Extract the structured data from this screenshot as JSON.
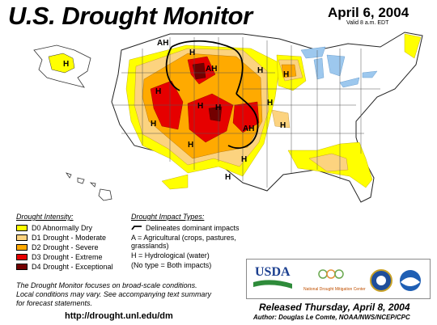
{
  "header": {
    "title": "U.S. Drought Monitor",
    "date": "April 6, 2004",
    "valid": "Valid 8 a.m. EDT"
  },
  "legend": {
    "intensity_title": "Drought Intensity:",
    "intensity": [
      {
        "label": "D0 Abnormally Dry",
        "color": "#ffff00"
      },
      {
        "label": "D1 Drought - Moderate",
        "color": "#fcd37f"
      },
      {
        "label": "D2 Drought - Severe",
        "color": "#ffaa00"
      },
      {
        "label": "D3 Drought - Extreme",
        "color": "#e60000"
      },
      {
        "label": "D4 Drought - Exceptional",
        "color": "#730000"
      }
    ],
    "impact_title": "Drought Impact Types:",
    "impact_line": "Delineates dominant impacts",
    "impact_a": "A = Agricultural (crops, pastures,",
    "impact_a2": "grasslands)",
    "impact_h": "H = Hydrological (water)",
    "impact_none": "(No type = Both impacts)"
  },
  "map_labels": {
    "h": "H",
    "ah": "AH",
    "a": "A"
  },
  "notes": {
    "line1": "The Drought Monitor focuses on broad-scale conditions.",
    "line2": "Local conditions may vary.  See accompanying text summary",
    "line3": "for forecast statements."
  },
  "footer": {
    "url": "http://drought.unl.edu/dm",
    "released": "Released Thursday, April 8, 2004",
    "author": "Author: Douglas Le Comte, NOAA/NWS/NCEP/CPC"
  },
  "logos": {
    "usda": "USDA",
    "ndmc": "National Drought Mitigation Center"
  }
}
